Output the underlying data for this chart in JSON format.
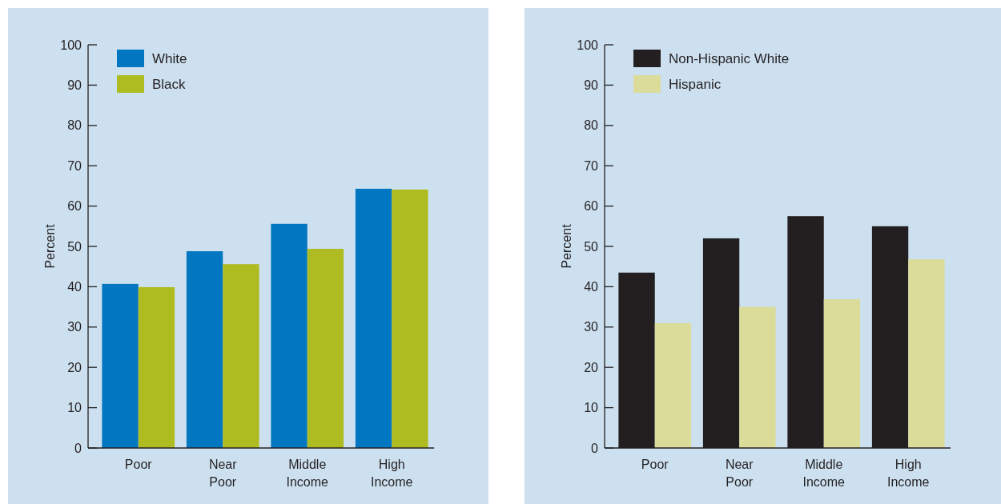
{
  "chart_data": [
    {
      "type": "bar",
      "ylabel": "Percent",
      "categories": [
        "Poor",
        "Near Poor",
        "Middle Income",
        "High Income"
      ],
      "ylim": [
        0,
        100
      ],
      "yticks": [
        0,
        10,
        20,
        30,
        40,
        50,
        60,
        70,
        80,
        90,
        100
      ],
      "legend": "top left",
      "grid": false,
      "series": [
        {
          "name": "White",
          "color": "#0077c0",
          "values": [
            40.7,
            48.8,
            55.6,
            64.3
          ]
        },
        {
          "name": "Black",
          "color": "#aebc22",
          "values": [
            39.9,
            45.6,
            49.4,
            64.1
          ]
        }
      ]
    },
    {
      "type": "bar",
      "ylabel": "Percent",
      "categories": [
        "Poor",
        "Near Poor",
        "Middle Income",
        "High Income"
      ],
      "ylim": [
        0,
        100
      ],
      "yticks": [
        0,
        10,
        20,
        30,
        40,
        50,
        60,
        70,
        80,
        90,
        100
      ],
      "legend": "top left",
      "grid": false,
      "series": [
        {
          "name": "Non-Hispanic White",
          "color": "#231f20",
          "values": [
            43.5,
            52.0,
            57.5,
            55.0
          ]
        },
        {
          "name": "Hispanic",
          "color": "#dbdb9a",
          "values": [
            31.0,
            35.0,
            36.9,
            46.8
          ]
        }
      ]
    }
  ]
}
